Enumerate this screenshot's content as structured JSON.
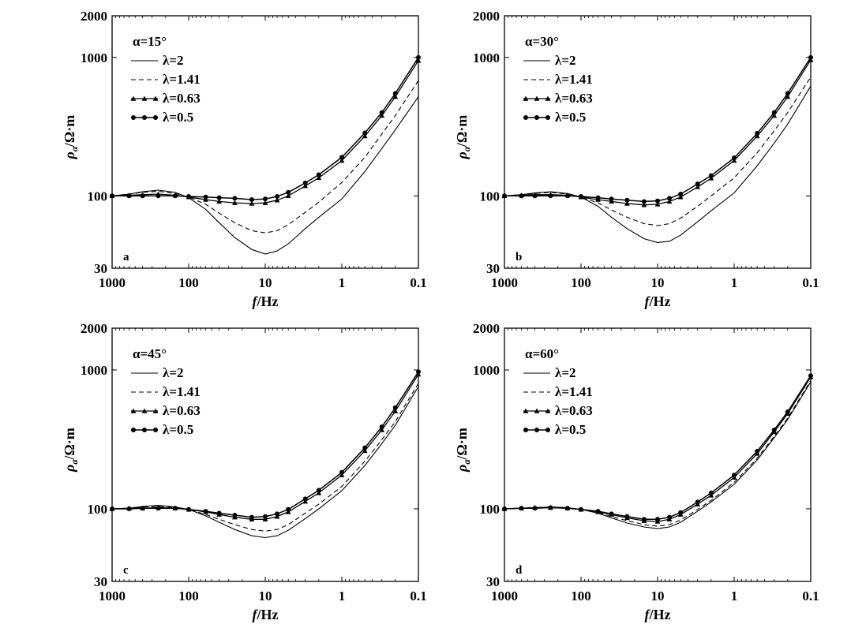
{
  "chart_data": [
    {
      "type": "line",
      "panel_label": "a",
      "legend_title": "α=15°",
      "xlabel": "f/Hz",
      "ylabel": "ρa/Ω·m",
      "x_scale": "log",
      "y_scale": "log",
      "xlim": [
        1000,
        0.1
      ],
      "ylim": [
        30,
        2000
      ],
      "x_ticks": [
        "1000",
        "100",
        "10",
        "1",
        "0.1"
      ],
      "y_ticks": [
        "30",
        "100",
        "1000",
        "2000"
      ],
      "legend_position": "top-left",
      "series": [
        {
          "name": "λ=2",
          "style": "solid",
          "x": [
            1000,
            600,
            400,
            250,
            150,
            100,
            60,
            40,
            25,
            15,
            10,
            7,
            5,
            3,
            2,
            1,
            0.5,
            0.3,
            0.2,
            0.1
          ],
          "y": [
            100,
            103,
            107,
            110,
            106,
            97,
            80,
            64,
            50,
            41,
            38,
            40,
            45,
            58,
            70,
            95,
            150,
            220,
            300,
            520
          ]
        },
        {
          "name": "λ=1.41",
          "style": "dashed",
          "x": [
            1000,
            600,
            400,
            250,
            150,
            100,
            60,
            40,
            25,
            15,
            10,
            7,
            5,
            3,
            2,
            1,
            0.5,
            0.3,
            0.2,
            0.1
          ],
          "y": [
            100,
            103,
            106,
            108,
            104,
            98,
            87,
            75,
            64,
            56,
            54,
            56,
            62,
            76,
            90,
            125,
            190,
            280,
            380,
            680
          ]
        },
        {
          "name": "λ=0.63",
          "style": "line-triangle",
          "x": [
            1000,
            600,
            400,
            250,
            150,
            100,
            60,
            40,
            25,
            15,
            10,
            7,
            5,
            3,
            2,
            1,
            0.5,
            0.3,
            0.2,
            0.1
          ],
          "y": [
            100,
            101,
            102,
            103,
            101,
            98,
            94,
            91,
            89,
            88,
            89,
            93,
            100,
            118,
            135,
            180,
            270,
            380,
            520,
            950
          ]
        },
        {
          "name": "λ=0.5",
          "style": "line-circle",
          "x": [
            1000,
            600,
            400,
            250,
            150,
            100,
            60,
            40,
            25,
            15,
            10,
            7,
            5,
            3,
            2,
            1,
            0.5,
            0.3,
            0.2,
            0.1
          ],
          "y": [
            100,
            100,
            100,
            100,
            100,
            99,
            98,
            97,
            96,
            94,
            95,
            99,
            106,
            124,
            142,
            190,
            285,
            400,
            550,
            1000
          ]
        }
      ]
    },
    {
      "type": "line",
      "panel_label": "b",
      "legend_title": "α=30°",
      "xlabel": "f/Hz",
      "ylabel": "ρa/Ω·m",
      "x_scale": "log",
      "y_scale": "log",
      "xlim": [
        1000,
        0.1
      ],
      "ylim": [
        30,
        2000
      ],
      "x_ticks": [
        "1000",
        "100",
        "10",
        "1",
        "0.1"
      ],
      "y_ticks": [
        "30",
        "100",
        "1000",
        "2000"
      ],
      "legend_position": "top-left",
      "series": [
        {
          "name": "λ=2",
          "style": "solid",
          "x": [
            1000,
            600,
            400,
            250,
            150,
            100,
            60,
            40,
            25,
            15,
            10,
            7,
            5,
            3,
            2,
            1,
            0.5,
            0.3,
            0.2,
            0.1
          ],
          "y": [
            100,
            102,
            105,
            107,
            104,
            98,
            84,
            70,
            58,
            49,
            46,
            47,
            52,
            65,
            78,
            105,
            165,
            240,
            330,
            620
          ]
        },
        {
          "name": "λ=1.41",
          "style": "dashed",
          "x": [
            1000,
            600,
            400,
            250,
            150,
            100,
            60,
            40,
            25,
            15,
            10,
            7,
            5,
            3,
            2,
            1,
            0.5,
            0.3,
            0.2,
            0.1
          ],
          "y": [
            100,
            102,
            104,
            106,
            103,
            98,
            89,
            79,
            70,
            63,
            61,
            63,
            69,
            84,
            100,
            135,
            205,
            295,
            400,
            720
          ]
        },
        {
          "name": "λ=0.63",
          "style": "line-triangle",
          "x": [
            1000,
            600,
            400,
            250,
            150,
            100,
            60,
            40,
            25,
            15,
            10,
            7,
            5,
            3,
            2,
            1,
            0.5,
            0.3,
            0.2,
            0.1
          ],
          "y": [
            100,
            101,
            102,
            102,
            101,
            98,
            94,
            91,
            88,
            86,
            87,
            91,
            98,
            116,
            134,
            180,
            270,
            380,
            520,
            960
          ]
        },
        {
          "name": "λ=0.5",
          "style": "line-circle",
          "x": [
            1000,
            600,
            400,
            250,
            150,
            100,
            60,
            40,
            25,
            15,
            10,
            7,
            5,
            3,
            2,
            1,
            0.5,
            0.3,
            0.2,
            0.1
          ],
          "y": [
            100,
            100,
            100,
            100,
            100,
            99,
            97,
            95,
            93,
            91,
            92,
            96,
            103,
            122,
            140,
            188,
            283,
            400,
            550,
            1000
          ]
        }
      ]
    },
    {
      "type": "line",
      "panel_label": "c",
      "legend_title": "α=45°",
      "xlabel": "f/Hz",
      "ylabel": "ρa/Ω·m",
      "x_scale": "log",
      "y_scale": "log",
      "xlim": [
        1000,
        0.1
      ],
      "ylim": [
        30,
        2000
      ],
      "x_ticks": [
        "1000",
        "100",
        "10",
        "1",
        "0.1"
      ],
      "y_ticks": [
        "30",
        "100",
        "1000",
        "2000"
      ],
      "legend_position": "top-left",
      "series": [
        {
          "name": "λ=2",
          "style": "solid",
          "x": [
            1000,
            600,
            400,
            250,
            150,
            100,
            60,
            40,
            25,
            15,
            10,
            7,
            5,
            3,
            2,
            1,
            0.5,
            0.3,
            0.2,
            0.1
          ],
          "y": [
            100,
            101,
            104,
            106,
            103,
            99,
            89,
            80,
            71,
            64,
            62,
            64,
            70,
            85,
            100,
            135,
            205,
            295,
            400,
            760
          ]
        },
        {
          "name": "λ=1.41",
          "style": "dashed",
          "x": [
            1000,
            600,
            400,
            250,
            150,
            100,
            60,
            40,
            25,
            15,
            10,
            7,
            5,
            3,
            2,
            1,
            0.5,
            0.3,
            0.2,
            0.1
          ],
          "y": [
            100,
            101,
            103,
            104,
            102,
            99,
            91,
            84,
            77,
            71,
            69,
            71,
            77,
            93,
            108,
            145,
            220,
            315,
            425,
            800
          ]
        },
        {
          "name": "λ=0.63",
          "style": "line-triangle",
          "x": [
            1000,
            600,
            400,
            250,
            150,
            100,
            60,
            40,
            25,
            15,
            10,
            7,
            5,
            3,
            2,
            1,
            0.5,
            0.3,
            0.2,
            0.1
          ],
          "y": [
            100,
            101,
            101,
            102,
            101,
            99,
            95,
            91,
            87,
            84,
            84,
            88,
            95,
            113,
            130,
            175,
            262,
            370,
            505,
            930
          ]
        },
        {
          "name": "λ=0.5",
          "style": "line-circle",
          "x": [
            1000,
            600,
            400,
            250,
            150,
            100,
            60,
            40,
            25,
            15,
            10,
            7,
            5,
            3,
            2,
            1,
            0.5,
            0.3,
            0.2,
            0.1
          ],
          "y": [
            100,
            100,
            101,
            101,
            101,
            99,
            96,
            93,
            90,
            87,
            88,
            92,
            99,
            118,
            136,
            183,
            275,
            390,
            535,
            970
          ]
        }
      ]
    },
    {
      "type": "line",
      "panel_label": "d",
      "legend_title": "α=60°",
      "xlabel": "f/Hz",
      "ylabel": "ρa/Ω·m",
      "x_scale": "log",
      "y_scale": "log",
      "xlim": [
        1000,
        0.1
      ],
      "ylim": [
        30,
        2000
      ],
      "x_ticks": [
        "1000",
        "100",
        "10",
        "1",
        "0.1"
      ],
      "y_ticks": [
        "30",
        "100",
        "1000",
        "2000"
      ],
      "legend_position": "top-left",
      "series": [
        {
          "name": "λ=2",
          "style": "solid",
          "x": [
            1000,
            600,
            400,
            250,
            150,
            100,
            60,
            40,
            25,
            15,
            10,
            7,
            5,
            3,
            2,
            1,
            0.5,
            0.3,
            0.2,
            0.1
          ],
          "y": [
            100,
            101,
            102,
            103,
            102,
            99,
            93,
            86,
            79,
            74,
            72,
            74,
            80,
            96,
            112,
            150,
            225,
            325,
            440,
            820
          ]
        },
        {
          "name": "λ=1.41",
          "style": "dashed",
          "x": [
            1000,
            600,
            400,
            250,
            150,
            100,
            60,
            40,
            25,
            15,
            10,
            7,
            5,
            3,
            2,
            1,
            0.5,
            0.3,
            0.2,
            0.1
          ],
          "y": [
            100,
            101,
            102,
            103,
            102,
            99,
            94,
            88,
            82,
            77,
            75,
            77,
            83,
            99,
            115,
            155,
            232,
            333,
            450,
            840
          ]
        },
        {
          "name": "λ=0.63",
          "style": "line-triangle",
          "x": [
            1000,
            600,
            400,
            250,
            150,
            100,
            60,
            40,
            25,
            15,
            10,
            7,
            5,
            3,
            2,
            1,
            0.5,
            0.3,
            0.2,
            0.1
          ],
          "y": [
            100,
            101,
            102,
            102,
            101,
            99,
            95,
            91,
            86,
            82,
            81,
            84,
            91,
            108,
            125,
            168,
            250,
            358,
            485,
            890
          ]
        },
        {
          "name": "λ=0.5",
          "style": "line-circle",
          "x": [
            1000,
            600,
            400,
            250,
            150,
            100,
            60,
            40,
            25,
            15,
            10,
            7,
            5,
            3,
            2,
            1,
            0.5,
            0.3,
            0.2,
            0.1
          ],
          "y": [
            100,
            101,
            101,
            102,
            101,
            99,
            96,
            92,
            88,
            84,
            84,
            87,
            94,
            112,
            130,
            175,
            260,
            370,
            500,
            910
          ]
        }
      ]
    }
  ]
}
